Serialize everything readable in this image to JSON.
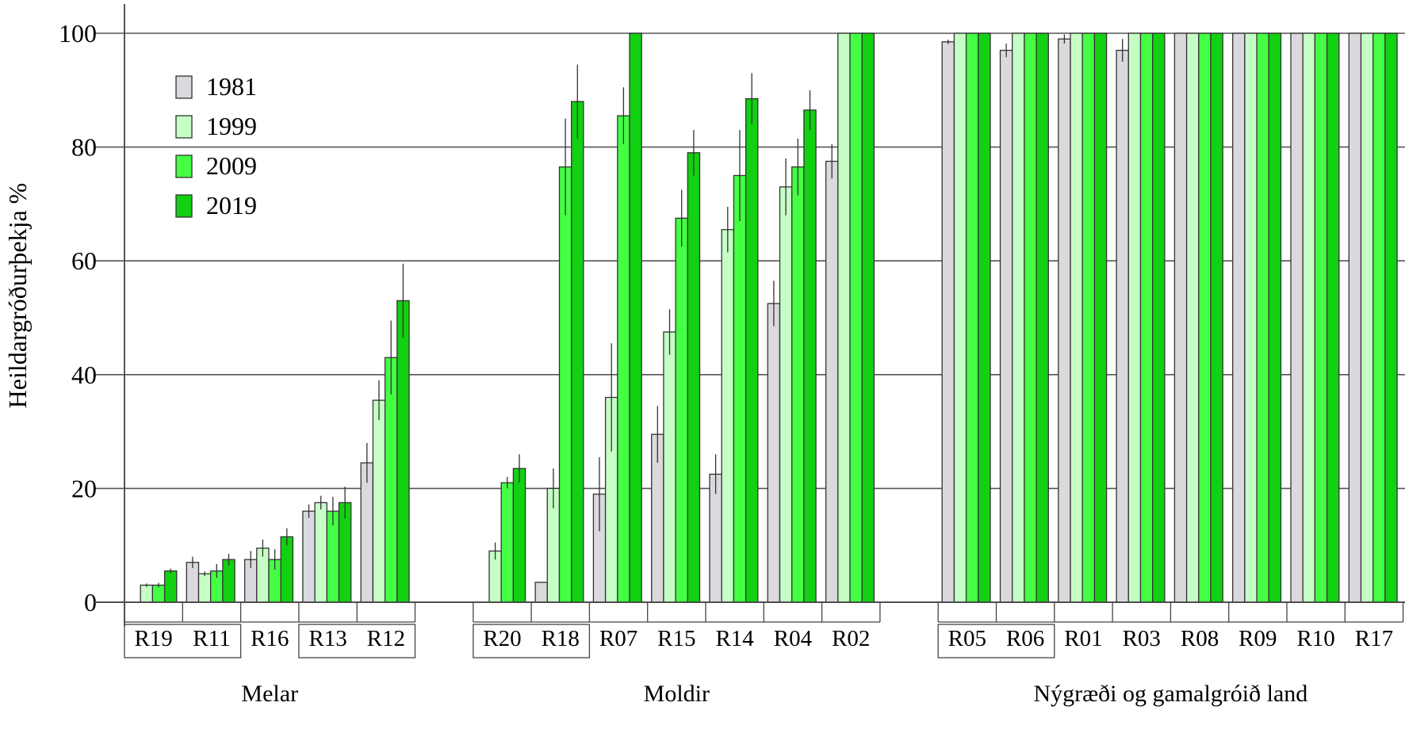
{
  "chart_data": {
    "type": "bar",
    "title": "",
    "xlabel": "",
    "ylabel": "Heildargróðurþekja %",
    "ylim": [
      0,
      100
    ],
    "yticks": [
      0,
      20,
      40,
      60,
      80,
      100
    ],
    "grid": true,
    "legend_position": "top-left",
    "series": [
      {
        "name": "1981",
        "color": "#d9d9de"
      },
      {
        "name": "1999",
        "color": "#c6ffc6"
      },
      {
        "name": "2009",
        "color": "#44ff44"
      },
      {
        "name": "2019",
        "color": "#12d012"
      }
    ],
    "highlight_color": "#ff0000",
    "groups": [
      {
        "name": "Melar",
        "sites": [
          {
            "label": "R19",
            "highlight": false,
            "values": [
              null,
              3,
              3,
              5.5
            ],
            "err": [
              0,
              0.3,
              0.4,
              0.4
            ]
          },
          {
            "label": "R11",
            "highlight": true,
            "values": [
              7,
              5,
              5.5,
              7.5
            ],
            "err": [
              1,
              0.4,
              1.2,
              1
            ]
          },
          {
            "label": "R16",
            "highlight": false,
            "values": [
              7.5,
              9.5,
              7.5,
              11.5
            ],
            "err": [
              1.5,
              1.5,
              1.8,
              1.5
            ]
          },
          {
            "label": "R13",
            "highlight": true,
            "values": [
              16,
              17.5,
              16,
              17.5
            ],
            "err": [
              1.2,
              1.2,
              2.5,
              2.8
            ],
            "label_red": false
          },
          {
            "label": "R12",
            "highlight": true,
            "values": [
              24.5,
              35.5,
              43,
              53
            ],
            "err": [
              3.5,
              3.5,
              6.5,
              6.5
            ]
          }
        ]
      },
      {
        "name": "Moldir",
        "sites": [
          {
            "label": "R20",
            "highlight": false,
            "values": [
              null,
              9,
              21,
              23.5
            ],
            "err": [
              0,
              1.5,
              1,
              2.5
            ]
          },
          {
            "label": "R18",
            "highlight": true,
            "values": [
              3.5,
              20,
              76.5,
              88
            ],
            "err": [
              0,
              3.5,
              8.5,
              6.5
            ]
          },
          {
            "label": "R07",
            "highlight": false,
            "values": [
              19,
              36,
              85.5,
              100
            ],
            "err": [
              6.5,
              9.5,
              5,
              0
            ]
          },
          {
            "label": "R15",
            "highlight": false,
            "values": [
              29.5,
              47.5,
              67.5,
              79
            ],
            "err": [
              5,
              4,
              5,
              4
            ]
          },
          {
            "label": "R14",
            "highlight": true,
            "values": [
              22.5,
              65.5,
              75,
              88.5
            ],
            "err": [
              3.5,
              4,
              8,
              4.5
            ]
          },
          {
            "label": "R04",
            "highlight": false,
            "values": [
              52.5,
              73,
              76.5,
              86.5
            ],
            "err": [
              4,
              5,
              5,
              3.5
            ]
          },
          {
            "label": "R02",
            "highlight": false,
            "values": [
              77.5,
              100,
              100,
              100
            ],
            "err": [
              3,
              0,
              0,
              0
            ]
          }
        ]
      },
      {
        "name": "Nýgræði og gamalgróið land",
        "sites": [
          {
            "label": "R05",
            "highlight": true,
            "values": [
              98.5,
              100,
              100,
              100
            ],
            "err": [
              0.4,
              0,
              0,
              0
            ]
          },
          {
            "label": "R06",
            "highlight": false,
            "values": [
              97,
              100,
              100,
              100
            ],
            "err": [
              1.2,
              0,
              0,
              0
            ]
          },
          {
            "label": "R01",
            "highlight": false,
            "values": [
              99,
              100,
              100,
              100
            ],
            "err": [
              0.8,
              0,
              0,
              0
            ]
          },
          {
            "label": "R03",
            "highlight": false,
            "values": [
              97,
              100,
              100,
              100
            ],
            "err": [
              2,
              0,
              0,
              0
            ]
          },
          {
            "label": "R08",
            "highlight": false,
            "values": [
              100,
              100,
              100,
              100
            ],
            "err": [
              0,
              0,
              0,
              0
            ]
          },
          {
            "label": "R09",
            "highlight": false,
            "values": [
              100,
              100,
              100,
              100
            ],
            "err": [
              0,
              0,
              0,
              0
            ]
          },
          {
            "label": "R10",
            "highlight": false,
            "values": [
              100,
              100,
              100,
              100
            ],
            "err": [
              0,
              0,
              0,
              0
            ]
          },
          {
            "label": "R17",
            "highlight": true,
            "values": [
              100,
              100,
              100,
              100
            ],
            "err": [
              0,
              0,
              0,
              0
            ]
          }
        ]
      }
    ],
    "boxed_pairs": [
      [
        "R19",
        "R11"
      ],
      [
        "R13",
        "R12"
      ],
      [
        "R20",
        "R18"
      ],
      [
        "R05",
        "R06"
      ]
    ]
  }
}
